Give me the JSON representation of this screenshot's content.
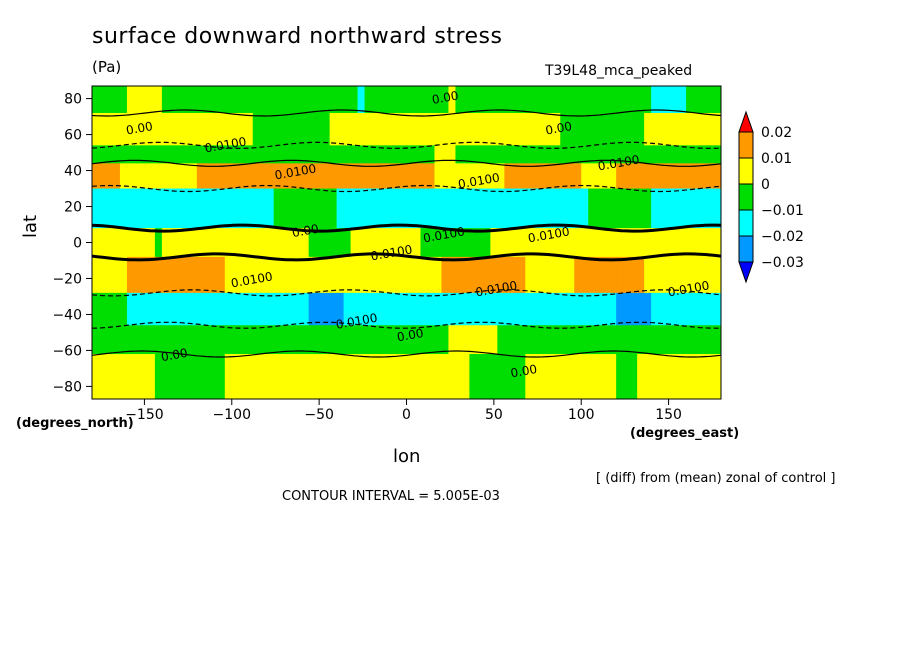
{
  "chart_data": {
    "type": "heatmap",
    "title": "surface downward northward stress",
    "units": "(Pa)",
    "run_label": "T39L48_mca_peaked",
    "xlabel": "lon",
    "ylabel": "lat",
    "x_unit_label": "(degrees_north)",
    "x_unit_label2": "(degrees_east)",
    "xlim": [
      -180,
      180
    ],
    "ylim": [
      -87,
      87
    ],
    "x_ticks": [
      -150,
      -100,
      -50,
      0,
      50,
      100,
      150
    ],
    "y_ticks": [
      80,
      60,
      40,
      20,
      0,
      -20,
      -40,
      -60,
      -80
    ],
    "colorbar": {
      "levels": [
        0.02,
        0.01,
        0,
        -0.01,
        -0.02,
        -0.03
      ],
      "level_labels": [
        "0.02",
        "0.01",
        "0",
        "−0.01",
        "−0.02",
        "−0.03"
      ],
      "colors": [
        "#ff0000",
        "#ff9900",
        "#ffff00",
        "#00dd00",
        "#00ffff",
        "#0099ff",
        "#0000ff"
      ],
      "extend": "both"
    },
    "zonal_bands": [
      {
        "lat_from": 87,
        "lat_to": 72,
        "value": -0.005
      },
      {
        "lat_from": 72,
        "lat_to": 54,
        "value": 0.002
      },
      {
        "lat_from": 54,
        "lat_to": 44,
        "value": -0.004
      },
      {
        "lat_from": 44,
        "lat_to": 30,
        "value": 0.012
      },
      {
        "lat_from": 30,
        "lat_to": 8,
        "value": -0.013
      },
      {
        "lat_from": 8,
        "lat_to": -8,
        "value": 0.002
      },
      {
        "lat_from": -8,
        "lat_to": -28,
        "value": 0.009
      },
      {
        "lat_from": -28,
        "lat_to": -46,
        "value": -0.015
      },
      {
        "lat_from": -46,
        "lat_to": -62,
        "value": -0.003
      },
      {
        "lat_from": -62,
        "lat_to": -87,
        "value": 0.003
      }
    ],
    "contour_labels": [
      "0.00",
      "0.0100"
    ],
    "footer_note": "[ (diff) from (mean) zonal of control ]",
    "contour_interval": "CONTOUR INTERVAL = 5.005E-03"
  }
}
